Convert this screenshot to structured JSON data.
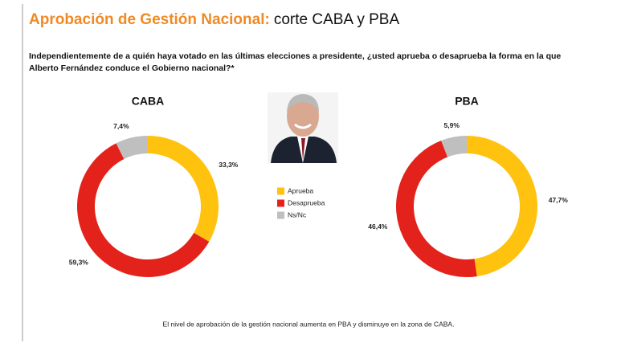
{
  "header": {
    "title_highlight": "Aprobación de Gestión Nacional:",
    "title_rest": "corte CABA y PBA",
    "question": [
      "Independientemente de a quién haya votado en las últimas elecciones a presidente, ¿usted aprueba o desaprueba la forma en la que",
      "Alberto Fernández conduce el Gobierno nacional?*"
    ]
  },
  "chart_data": [
    {
      "type": "pie",
      "title": "CABA",
      "categories": [
        "Aprueba",
        "Desaprueba",
        "Ns/Nc"
      ],
      "values": [
        33.3,
        59.3,
        7.4
      ],
      "value_labels": [
        "33,3%",
        "59,3%",
        "7,4%"
      ],
      "colors": [
        "#FFC20E",
        "#E3231B",
        "#BFBFBF"
      ]
    },
    {
      "type": "pie",
      "title": "PBA",
      "categories": [
        "Aprueba",
        "Desaprueba",
        "Ns/Nc"
      ],
      "values": [
        47.7,
        46.4,
        5.9
      ],
      "value_labels": [
        "47,7%",
        "46,4%",
        "5,9%"
      ],
      "colors": [
        "#FFC20E",
        "#E3231B",
        "#BFBFBF"
      ]
    }
  ],
  "footnote": "El nivel de aprobación de la gestión nacional aumenta en PBA y disminuye en la zona de CABA."
}
